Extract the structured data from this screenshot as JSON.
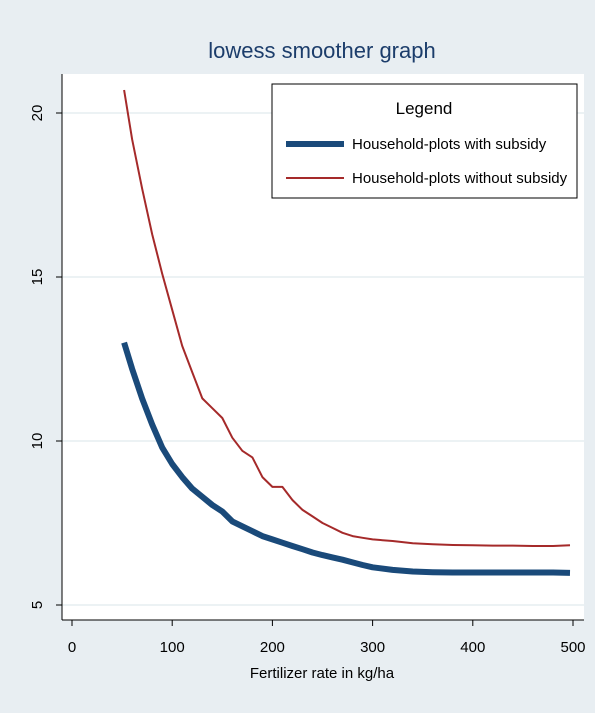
{
  "chart_data": {
    "type": "line",
    "title": "lowess smoother graph",
    "xlabel": "Fertilizer rate in kg/ha",
    "ylabel": "",
    "xlim": [
      0,
      500
    ],
    "ylim": [
      4.5,
      21.5
    ],
    "x_ticks": [
      0,
      100,
      200,
      300,
      400,
      500
    ],
    "y_ticks": [
      5,
      10,
      15,
      20
    ],
    "grid": true,
    "legend": {
      "title": "Legend",
      "placement": "top-right"
    },
    "series": [
      {
        "name": "Household-plots with subsidy",
        "color": "#1a4a7a",
        "x": [
          52,
          60,
          70,
          80,
          90,
          100,
          110,
          120,
          130,
          140,
          150,
          160,
          170,
          180,
          190,
          200,
          210,
          220,
          230,
          240,
          250,
          260,
          270,
          280,
          290,
          300,
          320,
          340,
          360,
          380,
          400,
          420,
          440,
          460,
          480,
          497
        ],
        "y": [
          13.0,
          12.2,
          11.3,
          10.5,
          9.8,
          9.3,
          8.9,
          8.55,
          8.3,
          8.05,
          7.85,
          7.55,
          7.4,
          7.25,
          7.1,
          7.0,
          6.9,
          6.8,
          6.7,
          6.6,
          6.52,
          6.45,
          6.38,
          6.3,
          6.22,
          6.15,
          6.07,
          6.02,
          6.0,
          5.99,
          5.99,
          5.99,
          5.99,
          5.99,
          5.99,
          5.98
        ]
      },
      {
        "name": "Household-plots without subsidy",
        "color": "#a52a2a",
        "x": [
          52,
          60,
          70,
          80,
          90,
          100,
          110,
          120,
          130,
          140,
          150,
          160,
          170,
          180,
          190,
          200,
          210,
          220,
          230,
          240,
          250,
          260,
          270,
          280,
          290,
          300,
          320,
          340,
          360,
          380,
          400,
          420,
          440,
          460,
          480,
          497
        ],
        "y": [
          20.7,
          19.2,
          17.7,
          16.3,
          15.1,
          14.0,
          12.9,
          12.1,
          11.3,
          11.0,
          10.7,
          10.1,
          9.7,
          9.5,
          8.9,
          8.6,
          8.6,
          8.2,
          7.9,
          7.7,
          7.5,
          7.35,
          7.2,
          7.1,
          7.05,
          7.0,
          6.95,
          6.88,
          6.85,
          6.83,
          6.82,
          6.81,
          6.81,
          6.8,
          6.8,
          6.82
        ]
      }
    ]
  }
}
